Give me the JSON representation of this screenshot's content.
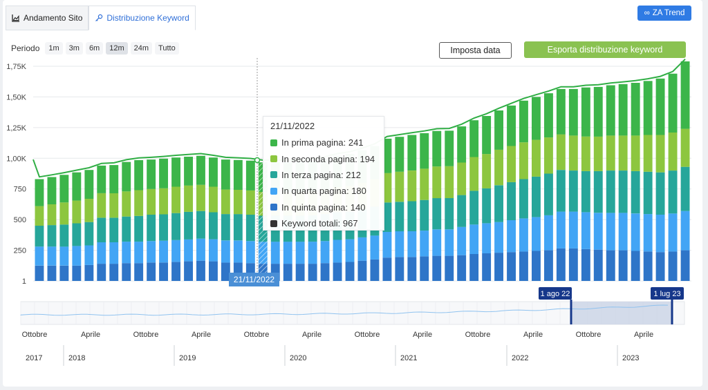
{
  "tabs": [
    {
      "label": "Andamento Sito",
      "icon": "area-chart-icon"
    },
    {
      "label": "Distribuzione Keyword",
      "icon": "key-icon"
    }
  ],
  "za_button": "ZA Trend",
  "period": {
    "label": "Periodo",
    "options": [
      "1m",
      "3m",
      "6m",
      "12m",
      "24m",
      "Tutto"
    ],
    "selected": "12m"
  },
  "buttons": {
    "set_date": "Imposta data",
    "export": "Esporta distribuzione keyword"
  },
  "colors": {
    "prima": "#3cb54a",
    "seconda": "#8dc63f",
    "terza": "#26a69a",
    "quarta": "#42a5f5",
    "quinta": "#2e75c8",
    "totali": "#333333",
    "accent": "#2f7be4"
  },
  "chart_data": {
    "type": "bar",
    "stacked": true,
    "y_ticks": [
      "1",
      "250",
      "500",
      "750",
      "1,00K",
      "1,25K",
      "1,50K",
      "1,75K"
    ],
    "ylim": [
      0,
      1750
    ],
    "series": [
      {
        "name": "In quinta pagina",
        "color": "#2e75c8",
        "values": [
          125,
          125,
          125,
          125,
          130,
          140,
          140,
          145,
          145,
          150,
          150,
          155,
          160,
          165,
          160,
          150,
          150,
          145,
          140,
          140,
          140,
          140,
          140,
          145,
          150,
          155,
          165,
          175,
          190,
          195,
          195,
          200,
          205,
          205,
          210,
          220,
          225,
          230,
          235,
          240,
          245,
          250,
          265,
          265,
          260,
          255,
          250,
          250,
          245,
          240,
          235,
          240,
          250
        ]
      },
      {
        "name": "In quarta pagina",
        "color": "#42a5f5",
        "values": [
          155,
          155,
          155,
          160,
          160,
          175,
          175,
          175,
          175,
          175,
          178,
          178,
          178,
          180,
          180,
          180,
          180,
          180,
          180,
          180,
          180,
          180,
          180,
          180,
          185,
          185,
          190,
          195,
          210,
          210,
          210,
          210,
          215,
          215,
          230,
          240,
          245,
          250,
          260,
          270,
          275,
          285,
          300,
          300,
          300,
          300,
          305,
          305,
          305,
          305,
          305,
          310,
          320
        ]
      },
      {
        "name": "In terza pagina",
        "color": "#26a69a",
        "values": [
          170,
          175,
          180,
          185,
          190,
          200,
          200,
          205,
          210,
          215,
          215,
          220,
          225,
          225,
          220,
          215,
          215,
          215,
          212,
          212,
          212,
          212,
          215,
          220,
          225,
          225,
          230,
          235,
          240,
          240,
          245,
          250,
          255,
          255,
          260,
          275,
          285,
          300,
          310,
          320,
          330,
          340,
          340,
          335,
          335,
          340,
          345,
          345,
          345,
          345,
          345,
          350,
          360
        ]
      },
      {
        "name": "In seconda pagina",
        "color": "#8dc63f",
        "values": [
          160,
          170,
          180,
          185,
          190,
          200,
          200,
          205,
          210,
          210,
          212,
          215,
          215,
          213,
          208,
          200,
          198,
          198,
          194,
          194,
          194,
          194,
          196,
          200,
          205,
          210,
          215,
          225,
          240,
          245,
          250,
          255,
          258,
          260,
          265,
          275,
          280,
          290,
          295,
          300,
          300,
          295,
          290,
          285,
          282,
          282,
          285,
          285,
          290,
          300,
          305,
          310,
          310
        ]
      },
      {
        "name": "In prima pagina",
        "color": "#3cb54a",
        "values": [
          220,
          222,
          225,
          230,
          235,
          225,
          230,
          240,
          245,
          240,
          242,
          238,
          235,
          237,
          238,
          245,
          243,
          243,
          241,
          241,
          241,
          241,
          244,
          250,
          255,
          260,
          265,
          270,
          280,
          285,
          290,
          290,
          290,
          290,
          295,
          300,
          310,
          320,
          330,
          340,
          350,
          360,
          370,
          380,
          400,
          405,
          410,
          420,
          430,
          440,
          460,
          480,
          550
        ]
      }
    ],
    "total_line_label": "Keyword totali",
    "tooltip": {
      "date": "21/11/2022",
      "rows": [
        {
          "label": "In prima pagina: 241",
          "color": "#3cb54a"
        },
        {
          "label": "In seconda pagina: 194",
          "color": "#8dc63f"
        },
        {
          "label": "In terza pagina: 212",
          "color": "#26a69a"
        },
        {
          "label": "In quarta pagina: 180",
          "color": "#42a5f5"
        },
        {
          "label": "In quinta pagina: 140",
          "color": "#2e75c8"
        },
        {
          "label": "Keyword totali: 967",
          "color": "#333333"
        }
      ]
    },
    "x_label_hover": "21/11/2022",
    "navigator": {
      "months": [
        "Ottobre",
        "Aprile",
        "Ottobre",
        "Aprile",
        "Ottobre",
        "Aprile",
        "Ottobre",
        "Aprile",
        "Ottobre",
        "Aprile",
        "Ottobre",
        "Aprile"
      ],
      "years": [
        "2017",
        "2018",
        "2019",
        "2020",
        "2021",
        "2022",
        "2023"
      ],
      "range_start": "1 ago 22",
      "range_end": "1 lug 23"
    }
  }
}
